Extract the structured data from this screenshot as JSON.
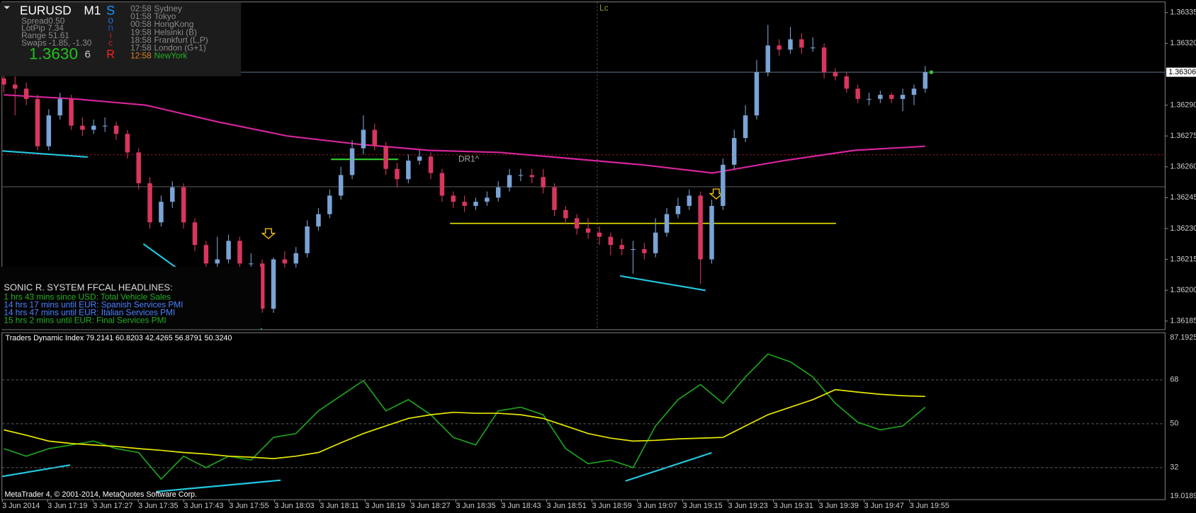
{
  "info_panel": {
    "symbol": "EURUSD",
    "timeframe": "M1",
    "stats": [
      "Spread0.50",
      "LotPip 7.34",
      "Range 51.61",
      "Swaps -1.85, -1.30"
    ],
    "price": "1.3630",
    "counter": "6",
    "logo": [
      "S",
      "o",
      "n",
      "i",
      "c",
      "R"
    ]
  },
  "sessions": [
    {
      "time": "02:58",
      "city": "Sydney"
    },
    {
      "time": "01:58",
      "city": "Tokyo"
    },
    {
      "time": "00:58",
      "city": "HongKong"
    },
    {
      "time": "19:58",
      "city": "Helsinki (B)"
    },
    {
      "time": "18:58",
      "city": "Frankfurt (L,P)"
    },
    {
      "time": "17:58",
      "city": "London (G+1)"
    },
    {
      "time": "12:58",
      "city": "NewYork"
    }
  ],
  "headlines": {
    "title": "SONIC R. SYSTEM  FFCAL HEADLINES:",
    "items": [
      "1 hrs 43 mins since USD: Total Vehicle Sales",
      "14 hrs 17 mins until EUR: Spanish Services PMI",
      "14 hrs 47 mins until EUR: Italian Services PMI",
      "15 hrs 2 mins until EUR: Final Services PMI"
    ]
  },
  "footer": "MetaTrader 4, © 2001-2014, MetaQuotes Software Corp.",
  "chart_data": [
    {
      "type": "candlestick",
      "annotations": [
        "DR1^",
        "Lc"
      ],
      "color_up": "#7aa3d6",
      "color_down": "#d8365f",
      "ylim": [
        1.36181,
        1.3634
      ],
      "yticks": [
        1.36335,
        {
          "value": 1.3632,
          "label": "1.36320"
        },
        {
          "value": 1.3629,
          "label": "1.36290"
        },
        1.36275,
        {
          "value": 1.3626,
          "label": "1.36260"
        },
        1.36245,
        {
          "value": 1.3623,
          "label": "1.36230"
        },
        1.36215,
        {
          "value": 1.362,
          "label": "1.36200"
        },
        1.36185
      ],
      "current_price": {
        "value": 1.36306,
        "label": "1.36306"
      },
      "ma": {
        "color": "#d6259b",
        "values": [
          1.36295,
          1.36293,
          1.3629,
          1.36282,
          1.36275,
          1.36271,
          1.36268,
          1.36267,
          1.36264,
          1.36261,
          1.36257,
          1.36263,
          1.36268,
          1.3627
        ]
      },
      "candles": [
        [
          1.36303,
          1.36306,
          1.36296,
          1.363
        ],
        [
          1.363,
          1.36304,
          1.36285,
          1.36298
        ],
        [
          1.36298,
          1.36301,
          1.3629,
          1.36293
        ],
        [
          1.36293,
          1.36295,
          1.36268,
          1.3627
        ],
        [
          1.3627,
          1.36288,
          1.36268,
          1.36285
        ],
        [
          1.36285,
          1.36296,
          1.36283,
          1.36293
        ],
        [
          1.36293,
          1.36295,
          1.36278,
          1.3628
        ],
        [
          1.3628,
          1.36284,
          1.36275,
          1.36278
        ],
        [
          1.36278,
          1.36283,
          1.36276,
          1.3628
        ],
        [
          1.3628,
          1.36284,
          1.36277,
          1.3628
        ],
        [
          1.3628,
          1.36282,
          1.36273,
          1.36276
        ],
        [
          1.36276,
          1.36278,
          1.36264,
          1.36267
        ],
        [
          1.36267,
          1.36269,
          1.36249,
          1.36252
        ],
        [
          1.36252,
          1.36255,
          1.3623,
          1.36233
        ],
        [
          1.36233,
          1.36246,
          1.36231,
          1.36243
        ],
        [
          1.36243,
          1.36253,
          1.3624,
          1.3625
        ],
        [
          1.3625,
          1.36252,
          1.3623,
          1.36233
        ],
        [
          1.36233,
          1.36235,
          1.36219,
          1.36222
        ],
        [
          1.36222,
          1.36224,
          1.3621,
          1.36213
        ],
        [
          1.36213,
          1.36226,
          1.36211,
          1.36215
        ],
        [
          1.36215,
          1.36227,
          1.36213,
          1.36224
        ],
        [
          1.36224,
          1.36226,
          1.36211,
          1.36213
        ],
        [
          1.36213,
          1.36218,
          1.36211,
          1.36213
        ],
        [
          1.36213,
          1.36215,
          1.36189,
          1.36191
        ],
        [
          1.36191,
          1.36216,
          1.36189,
          1.36215
        ],
        [
          1.36215,
          1.36219,
          1.36211,
          1.36213
        ],
        [
          1.36213,
          1.36221,
          1.36211,
          1.36218
        ],
        [
          1.36218,
          1.36234,
          1.36216,
          1.36231
        ],
        [
          1.36231,
          1.3624,
          1.36229,
          1.36237
        ],
        [
          1.36237,
          1.36249,
          1.36235,
          1.36246
        ],
        [
          1.36246,
          1.3626,
          1.36244,
          1.36256
        ],
        [
          1.36256,
          1.36273,
          1.36254,
          1.36269
        ],
        [
          1.36269,
          1.36285,
          1.36266,
          1.36278
        ],
        [
          1.36278,
          1.36281,
          1.36268,
          1.3627
        ],
        [
          1.3627,
          1.36272,
          1.36256,
          1.36259
        ],
        [
          1.36259,
          1.36262,
          1.3625,
          1.36254
        ],
        [
          1.36254,
          1.36266,
          1.36252,
          1.36263
        ],
        [
          1.36263,
          1.36268,
          1.36261,
          1.36265
        ],
        [
          1.36265,
          1.36267,
          1.36254,
          1.36257
        ],
        [
          1.36257,
          1.36259,
          1.36243,
          1.36246
        ],
        [
          1.36246,
          1.36248,
          1.3624,
          1.36243
        ],
        [
          1.36243,
          1.36246,
          1.36238,
          1.36241
        ],
        [
          1.36241,
          1.36245,
          1.36239,
          1.36243
        ],
        [
          1.36243,
          1.36248,
          1.36241,
          1.36245
        ],
        [
          1.36245,
          1.36253,
          1.36243,
          1.3625
        ],
        [
          1.3625,
          1.36259,
          1.36248,
          1.36256
        ],
        [
          1.36256,
          1.36259,
          1.36253,
          1.36256
        ],
        [
          1.36256,
          1.36259,
          1.36252,
          1.36255
        ],
        [
          1.36255,
          1.36259,
          1.36247,
          1.3625
        ],
        [
          1.3625,
          1.36252,
          1.36236,
          1.36239
        ],
        [
          1.36239,
          1.36241,
          1.36232,
          1.36235
        ],
        [
          1.36235,
          1.36237,
          1.36227,
          1.3623
        ],
        [
          1.3623,
          1.36235,
          1.36225,
          1.36228
        ],
        [
          1.36228,
          1.36231,
          1.36222,
          1.36226
        ],
        [
          1.36226,
          1.36228,
          1.36217,
          1.36222
        ],
        [
          1.36222,
          1.36225,
          1.36217,
          1.3622
        ],
        [
          1.3622,
          1.36224,
          1.36208,
          1.3622
        ],
        [
          1.3622,
          1.36223,
          1.36215,
          1.36218
        ],
        [
          1.36218,
          1.36235,
          1.36216,
          1.36228
        ],
        [
          1.36228,
          1.3624,
          1.36226,
          1.36237
        ],
        [
          1.36237,
          1.36245,
          1.36235,
          1.36241
        ],
        [
          1.36241,
          1.36249,
          1.36239,
          1.36246
        ],
        [
          1.36246,
          1.36248,
          1.36203,
          1.36215
        ],
        [
          1.36215,
          1.36244,
          1.36213,
          1.36241
        ],
        [
          1.36241,
          1.36264,
          1.36239,
          1.36261
        ],
        [
          1.36261,
          1.36278,
          1.36259,
          1.36274
        ],
        [
          1.36274,
          1.3629,
          1.36272,
          1.36285
        ],
        [
          1.36285,
          1.36312,
          1.36283,
          1.36306
        ],
        [
          1.36306,
          1.36329,
          1.36304,
          1.36319
        ],
        [
          1.36319,
          1.36322,
          1.36314,
          1.36317
        ],
        [
          1.36317,
          1.36328,
          1.36315,
          1.36322
        ],
        [
          1.36322,
          1.36325,
          1.36315,
          1.36318
        ],
        [
          1.36318,
          1.36323,
          1.36316,
          1.36318
        ],
        [
          1.36318,
          1.3632,
          1.36303,
          1.36306
        ],
        [
          1.36306,
          1.36308,
          1.36302,
          1.36304
        ],
        [
          1.36304,
          1.36306,
          1.36296,
          1.36298
        ],
        [
          1.36298,
          1.363,
          1.36291,
          1.36293
        ],
        [
          1.36293,
          1.36296,
          1.3629,
          1.36293
        ],
        [
          1.36293,
          1.36297,
          1.36291,
          1.36295
        ],
        [
          1.36295,
          1.36296,
          1.36291,
          1.36293
        ],
        [
          1.36293,
          1.36298,
          1.36287,
          1.36295
        ],
        [
          1.36295,
          1.363,
          1.3629,
          1.36298
        ],
        [
          1.36298,
          1.36309,
          1.36296,
          1.36306
        ]
      ]
    },
    {
      "type": "line",
      "title": "Traders Dynamic Index 79.2141 60.8203 42.4265 56.8791 50.3240",
      "ylim": [
        19.0189,
        87.1925
      ],
      "yticks": [
        87.1925,
        68,
        50,
        32,
        19.0189
      ],
      "grid": true,
      "xlim": [
        0,
        205
      ],
      "xticks": [
        {
          "value": 0,
          "label": "3 Jun 2014"
        },
        {
          "value": 8,
          "label": "3 Jun 17:19"
        },
        {
          "value": 16,
          "label": "3 Jun 17:27"
        },
        {
          "value": 24,
          "label": "3 Jun 17:35"
        },
        {
          "value": 32,
          "label": "3 Jun 17:43"
        },
        {
          "value": 40,
          "label": "3 Jun 17:55"
        },
        {
          "value": 48,
          "label": "3 Jun 18:03"
        },
        {
          "value": 56,
          "label": "3 Jun 18:11"
        },
        {
          "value": 64,
          "label": "3 Jun 18:19"
        },
        {
          "value": 72,
          "label": "3 Jun 18:27"
        },
        {
          "value": 80,
          "label": "3 Jun 18:35"
        },
        {
          "value": 88,
          "label": "3 Jun 18:43"
        },
        {
          "value": 96,
          "label": "3 Jun 18:51"
        },
        {
          "value": 104,
          "label": "3 Jun 18:59"
        },
        {
          "value": 112,
          "label": "3 Jun 19:07"
        },
        {
          "value": 120,
          "label": "3 Jun 19:15"
        },
        {
          "value": 128,
          "label": "3 Jun 19:23"
        },
        {
          "value": 136,
          "label": "3 Jun 19:31"
        },
        {
          "value": 144,
          "label": "3 Jun 19:39"
        },
        {
          "value": 152,
          "label": "3 Jun 19:47"
        },
        {
          "value": 160,
          "label": "3 Jun 19:55"
        }
      ],
      "series": [
        {
          "color": "#1d9e1d",
          "values": [
            39.8,
            36.7,
            39.8,
            41.3,
            42.9,
            39.8,
            38.2,
            27.3,
            36.7,
            32,
            36.7,
            35.1,
            44.4,
            46,
            55.3,
            61.5,
            67.7,
            55.3,
            59.9,
            53.7,
            44.4,
            41.3,
            55.3,
            56.8,
            53.7,
            39.8,
            33.6,
            35.1,
            32,
            49.1,
            59.9,
            66.1,
            58.4,
            69.2,
            78.6,
            75.4,
            69.2,
            58.4,
            50.6,
            47.5,
            49.1,
            56.8
          ]
        },
        {
          "color": "#e6e600",
          "values": [
            47.5,
            45.3,
            42.9,
            41.9,
            41.3,
            40.7,
            39.8,
            39.1,
            38.2,
            37.6,
            36.7,
            36.3,
            35.7,
            36.7,
            38.2,
            42.2,
            46,
            49.1,
            52.2,
            53.7,
            54.7,
            54.3,
            54.3,
            53.7,
            52.2,
            49.1,
            46,
            44.1,
            42.9,
            43.2,
            43.8,
            44.1,
            44.4,
            49.1,
            53.7,
            56.8,
            59.9,
            64,
            63,
            62.1,
            61.5,
            61.2
          ]
        }
      ]
    }
  ]
}
